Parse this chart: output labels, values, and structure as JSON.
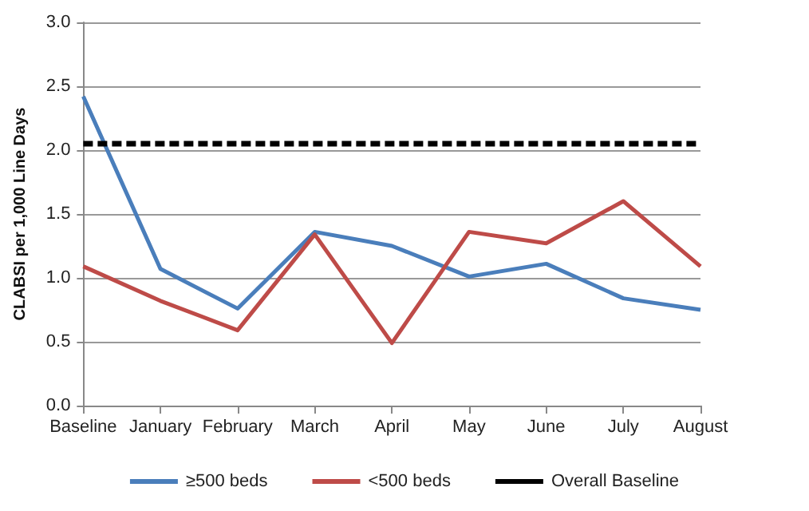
{
  "chart_data": {
    "type": "line",
    "ylabel": "CLABSI per 1,000 Line Days",
    "categories": [
      "Baseline",
      "January",
      "February",
      "March",
      "April",
      "May",
      "June",
      "July",
      "August"
    ],
    "series": [
      {
        "name": "≥500 beds",
        "color": "#4a7ebb",
        "values": [
          2.42,
          1.07,
          0.76,
          1.36,
          1.25,
          1.01,
          1.11,
          0.84,
          0.75
        ]
      },
      {
        "name": "<500 beds",
        "color": "#be4b48",
        "values": [
          1.09,
          0.82,
          0.59,
          1.34,
          0.49,
          1.36,
          1.27,
          1.6,
          1.09
        ]
      },
      {
        "name": "Overall Baseline",
        "color": "#000000",
        "line_style": "dashed",
        "values": [
          2.05,
          2.05,
          2.05,
          2.05,
          2.05,
          2.05,
          2.05,
          2.05,
          2.05
        ]
      }
    ],
    "ylim": [
      0,
      3
    ],
    "yticks": [
      {
        "value": 0,
        "label": "0.0"
      },
      0.5,
      {
        "value": 1,
        "label": "1.0"
      },
      1.5,
      {
        "value": 2,
        "label": "2.0"
      },
      2.5,
      {
        "value": 3,
        "label": "3.0"
      }
    ],
    "grid": "y",
    "legend": "bottom",
    "marker": "none",
    "line_style": "solid"
  }
}
